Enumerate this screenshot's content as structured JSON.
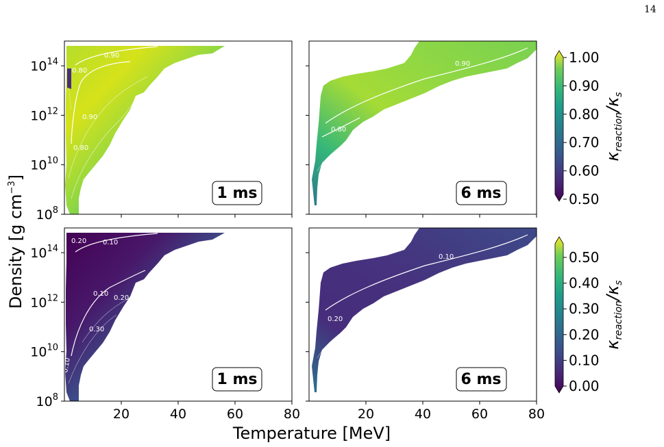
{
  "page_number": "14",
  "figure": {
    "ylabel": "Density [g cm",
    "ylabel_sup": "−3",
    "ylabel_close": "]",
    "xlabel": "Temperature [MeV]",
    "x_ticks": [
      "20",
      "40",
      "60",
      "80"
    ],
    "y_ticks": [
      {
        "base": "10",
        "exp": "8"
      },
      {
        "base": "10",
        "exp": "10"
      },
      {
        "base": "10",
        "exp": "12"
      },
      {
        "base": "10",
        "exp": "14"
      }
    ],
    "colormap": "viridis"
  },
  "chart_data": [
    {
      "type": "heatmap",
      "panel": "top-left",
      "badge": "1 ms",
      "x_range": [
        0,
        80
      ],
      "y_range_log10": [
        8,
        15
      ],
      "contour_labels": [
        "0.90",
        "0.80",
        "0.90",
        "0.80"
      ],
      "colorbar": {
        "label": "κ_reaction/κ_s",
        "range": [
          0.5,
          1.0
        ],
        "ticks": [
          "1.00",
          "0.90",
          "0.80",
          "0.70",
          "0.60",
          "0.50"
        ]
      }
    },
    {
      "type": "heatmap",
      "panel": "top-right",
      "badge": "6 ms",
      "x_range": [
        0,
        80
      ],
      "y_range_log10": [
        8,
        15
      ],
      "contour_labels": [
        "0.90",
        "0.80"
      ],
      "colorbar": {
        "label": "κ_reaction/κ_s",
        "range": [
          0.5,
          1.0
        ],
        "ticks": [
          "1.00",
          "0.90",
          "0.80",
          "0.70",
          "0.60",
          "0.50"
        ]
      }
    },
    {
      "type": "heatmap",
      "panel": "bottom-left",
      "badge": "1 ms",
      "x_range": [
        0,
        80
      ],
      "y_range_log10": [
        8,
        15
      ],
      "contour_labels": [
        "0.20",
        "0.10",
        "0.10",
        "0.20",
        "0.30",
        "0.10"
      ],
      "colorbar": {
        "label": "κ_reaction/κ_s",
        "range": [
          0.0,
          0.55
        ],
        "ticks": [
          "0.50",
          "0.40",
          "0.30",
          "0.20",
          "0.10",
          "0.00"
        ]
      }
    },
    {
      "type": "heatmap",
      "panel": "bottom-right",
      "badge": "6 ms",
      "x_range": [
        0,
        80
      ],
      "y_range_log10": [
        8,
        15
      ],
      "contour_labels": [
        "0.10",
        "0.20"
      ],
      "colorbar": {
        "label": "κ_reaction/κ_s",
        "range": [
          0.0,
          0.55
        ],
        "ticks": [
          "0.50",
          "0.40",
          "0.30",
          "0.20",
          "0.10",
          "0.00"
        ]
      }
    }
  ],
  "colorbars": [
    {
      "name": "top",
      "label_main": "κ",
      "label_sub": "reaction",
      "label_sep": "/κ",
      "label_sub2": "s",
      "ticks": [
        "1.00",
        "0.90",
        "0.80",
        "0.70",
        "0.60",
        "0.50"
      ]
    },
    {
      "name": "bottom",
      "label_main": "κ",
      "label_sub": "reaction",
      "label_sep": "/κ",
      "label_sub2": "s",
      "ticks": [
        "0.50",
        "0.40",
        "0.30",
        "0.20",
        "0.10",
        "0.00"
      ]
    }
  ]
}
